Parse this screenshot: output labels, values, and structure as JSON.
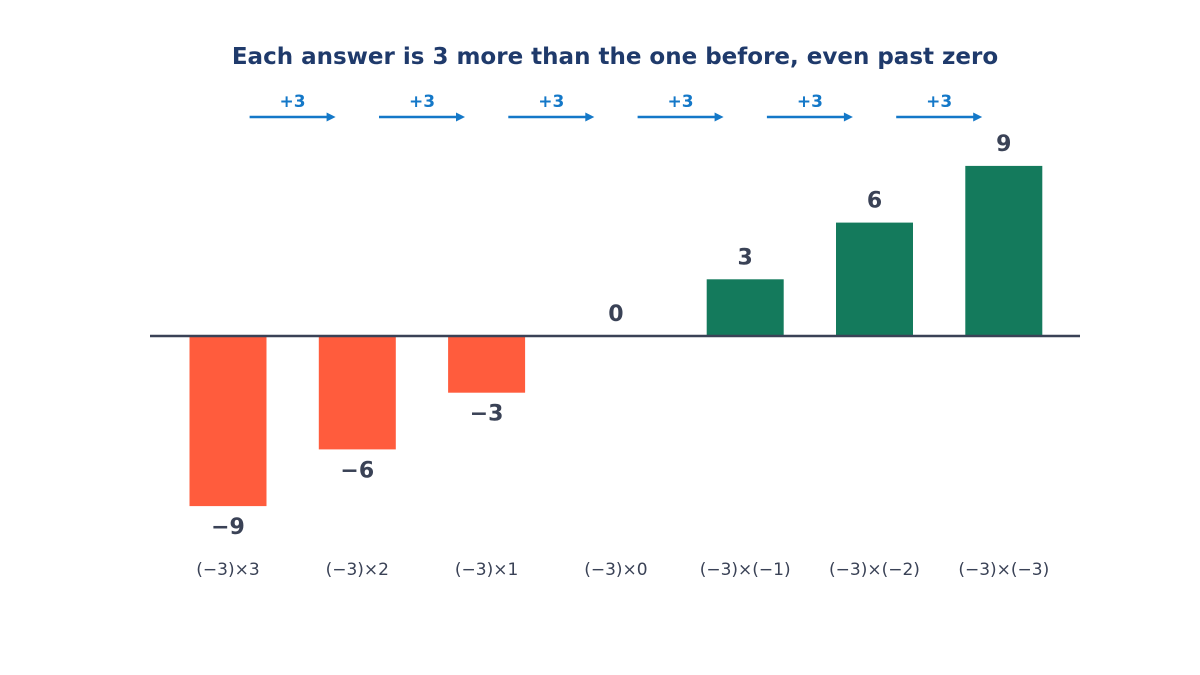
{
  "chart_data": {
    "type": "bar",
    "title": "Each answer is 3 more than the one before, even past zero",
    "categories": [
      "(−3)×3",
      "(−3)×2",
      "(−3)×1",
      "(−3)×0",
      "(−3)×(−1)",
      "(−3)×(−2)",
      "(−3)×(−3)"
    ],
    "values": [
      -9,
      -6,
      -3,
      0,
      3,
      6,
      9
    ],
    "value_labels": [
      "−9",
      "−6",
      "−3",
      "0",
      "3",
      "6",
      "9"
    ],
    "step_annotations": [
      "+3",
      "+3",
      "+3",
      "+3",
      "+3",
      "+3"
    ],
    "xlabel": "",
    "ylabel": "",
    "ylim": [
      -9,
      9
    ],
    "grid": false,
    "colors": {
      "negative": "#FF5C3D",
      "positive": "#147A5C",
      "step": "#1478C8",
      "title": "#1F3A6B",
      "text": "#3A4256",
      "axis": "#3A4256"
    }
  }
}
